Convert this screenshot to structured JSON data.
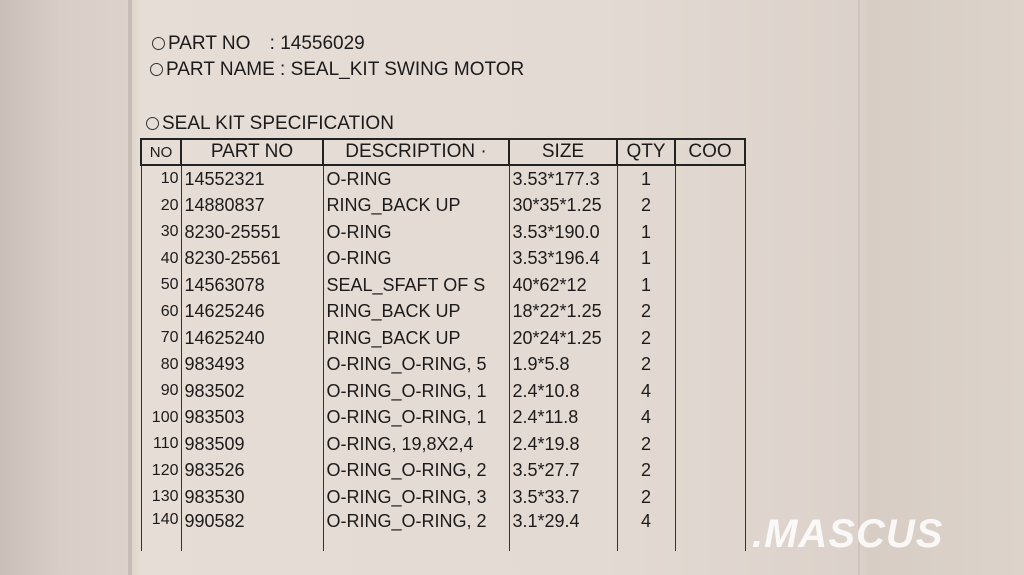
{
  "header": {
    "part_no_label": "PART NO",
    "part_no_value": ": 14556029",
    "part_name_label": "PART NAME",
    "part_name_value": ": SEAL_KIT SWING MOTOR",
    "spec_title": "SEAL KIT SPECIFICATION"
  },
  "table": {
    "columns": [
      "NO",
      "PART NO",
      "DESCRIPTION ·",
      "SIZE",
      "QTY",
      "COO"
    ],
    "rows": [
      {
        "no": "10",
        "part": "14552321",
        "desc": "O-RING",
        "size": "3.53*177.3",
        "qty": "1",
        "coo": ""
      },
      {
        "no": "20",
        "part": "14880837",
        "desc": "RING_BACK UP",
        "size": "30*35*1.25",
        "qty": "2",
        "coo": ""
      },
      {
        "no": "30",
        "part": "8230-25551",
        "desc": "O-RING",
        "size": "3.53*190.0",
        "qty": "1",
        "coo": ""
      },
      {
        "no": "40",
        "part": "8230-25561",
        "desc": "O-RING",
        "size": "3.53*196.4",
        "qty": "1",
        "coo": ""
      },
      {
        "no": "50",
        "part": "14563078",
        "desc": "SEAL_SFAFT OF S",
        "size": "40*62*12",
        "qty": "1",
        "coo": ""
      },
      {
        "no": "60",
        "part": "14625246",
        "desc": "RING_BACK UP",
        "size": "18*22*1.25",
        "qty": "2",
        "coo": ""
      },
      {
        "no": "70",
        "part": "14625240",
        "desc": "RING_BACK UP",
        "size": "20*24*1.25",
        "qty": "2",
        "coo": ""
      },
      {
        "no": "80",
        "part": "983493",
        "desc": "O-RING_O-RING, 5",
        "size": "1.9*5.8",
        "qty": "2",
        "coo": ""
      },
      {
        "no": "90",
        "part": "983502",
        "desc": "O-RING_O-RING, 1",
        "size": "2.4*10.8",
        "qty": "4",
        "coo": ""
      },
      {
        "no": "100",
        "part": "983503",
        "desc": "O-RING_O-RING, 1",
        "size": "2.4*11.8",
        "qty": "4",
        "coo": ""
      },
      {
        "no": "110",
        "part": "983509",
        "desc": "O-RING, 19,8X2,4",
        "size": "2.4*19.8",
        "qty": "2",
        "coo": ""
      },
      {
        "no": "120",
        "part": "983526",
        "desc": "O-RING_O-RING, 2",
        "size": "3.5*27.7",
        "qty": "2",
        "coo": ""
      },
      {
        "no": "130",
        "part": "983530",
        "desc": "O-RING_O-RING, 3",
        "size": "3.5*33.7",
        "qty": "2",
        "coo": ""
      },
      {
        "no": "140",
        "part": "990582",
        "desc": "O-RING_O-RING, 2",
        "size": "3.1*29.4",
        "qty": "4",
        "coo": ""
      }
    ]
  },
  "watermark": ".MASCUS"
}
